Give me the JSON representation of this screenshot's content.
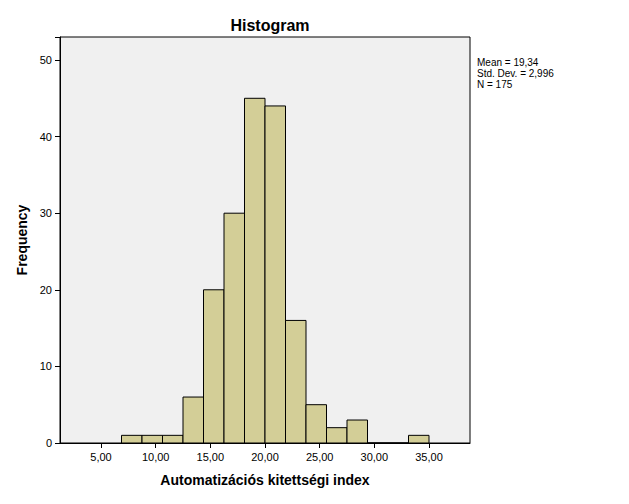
{
  "chart_data": {
    "type": "histogram",
    "title": "Histogram",
    "x_label": "Automatizációs kitettségi index",
    "y_label": "Frequency",
    "annotations": [
      "Mean = 19,34",
      "Std. Dev. = 2,996",
      "N = 175"
    ],
    "bins": [
      6.875,
      8.75,
      10.625,
      12.5,
      14.375,
      16.25,
      18.125,
      20.0,
      21.875,
      23.75,
      25.625,
      27.5,
      29.375,
      31.25,
      33.125,
      35.0
    ],
    "values": [
      1,
      1,
      1,
      6,
      20,
      30,
      45,
      44,
      16,
      5,
      2,
      3,
      0,
      0,
      1
    ],
    "color": "#d3ce97",
    "xlim": [
      1.25,
      38.75
    ],
    "xticks": [
      {
        "value": 5,
        "label": "5,00"
      },
      {
        "value": 10,
        "label": "10,00"
      },
      {
        "value": 15,
        "label": "15,00"
      },
      {
        "value": 20,
        "label": "20,00"
      },
      {
        "value": 25,
        "label": "25,00"
      },
      {
        "value": 30,
        "label": "30,00"
      },
      {
        "value": 35,
        "label": "35,00"
      }
    ],
    "ylim": [
      0,
      53
    ],
    "yticks": [
      0,
      10,
      20,
      30,
      40,
      50
    ],
    "grid": false
  }
}
